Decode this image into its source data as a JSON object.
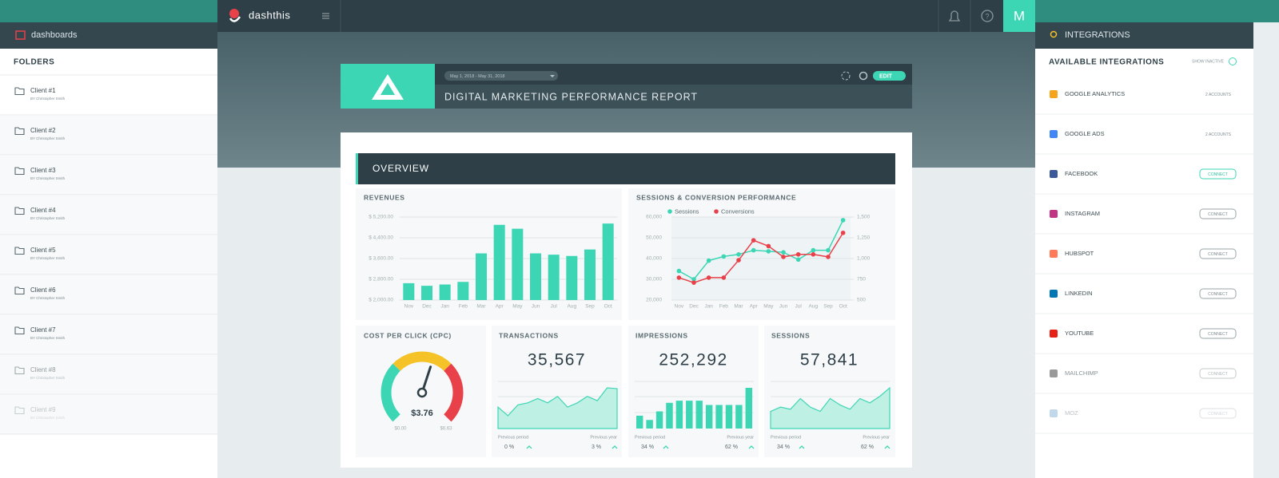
{
  "app": {
    "logo": "dashthis",
    "avatar": "M"
  },
  "left_panel": {
    "title": "dashboards",
    "folders_label": "FOLDERS",
    "clients": [
      {
        "name": "Client #1",
        "by": "BY Christopher Smith"
      },
      {
        "name": "Client #2",
        "by": "BY Christopher Smith"
      },
      {
        "name": "Client #3",
        "by": "BY Christopher Smith"
      },
      {
        "name": "Client #4",
        "by": "BY Christopher Smith"
      },
      {
        "name": "Client #5",
        "by": "BY Christopher Smith"
      },
      {
        "name": "Client #6",
        "by": "BY Christopher Smith"
      },
      {
        "name": "Client #7",
        "by": "BY Christopher Smith"
      },
      {
        "name": "Client #8",
        "by": "BY Christopher Smith"
      },
      {
        "name": "Client #9",
        "by": "BY Christopher Smith"
      }
    ]
  },
  "right_panel": {
    "title": "INTEGRATIONS",
    "subtitle": "AVAILABLE INTEGRATIONS",
    "show_inactive": "SHOW INACTIVE",
    "items": [
      {
        "name": "GOOGLE ANALYTICS",
        "status": "2 ACCOUNTS",
        "color": "#f4a51c"
      },
      {
        "name": "GOOGLE ADS",
        "status": "2 ACCOUNTS",
        "color": "#4285f4"
      },
      {
        "name": "FACEBOOK",
        "status": "CONNECT",
        "color": "#3b5998"
      },
      {
        "name": "INSTAGRAM",
        "status": "CONNECT",
        "color": "#c13584"
      },
      {
        "name": "HUBSPOT",
        "status": "CONNECT",
        "color": "#ff7a59"
      },
      {
        "name": "LINKEDIN",
        "status": "CONNECT",
        "color": "#0077b5"
      },
      {
        "name": "YOUTUBE",
        "status": "CONNECT",
        "color": "#e62117"
      },
      {
        "name": "MAILCHIMP",
        "status": "CONNECT",
        "color": "#555555"
      },
      {
        "name": "MOZ",
        "status": "CONNECT",
        "color": "#4a90c2"
      }
    ]
  },
  "report": {
    "date_range": "May 1, 2018 - May 31, 2018",
    "edit": "EDIT",
    "title": "DIGITAL MARKETING PERFORMANCE REPORT",
    "section": "OVERVIEW"
  },
  "revenues": {
    "type": "bar",
    "title": "REVENUES",
    "color": "#3dd6b5",
    "categories": [
      "Nov",
      "Dec",
      "Jan",
      "Feb",
      "Mar",
      "Apr",
      "May",
      "Jun",
      "Jul",
      "Aug",
      "Sep",
      "Oct"
    ],
    "values": [
      2650,
      2550,
      2600,
      2700,
      3800,
      4900,
      4750,
      3800,
      3750,
      3700,
      3950,
      4950
    ],
    "ylim": [
      2000,
      5200
    ],
    "yticks": [
      {
        "value": 2000,
        "label": "$ 2,000.00"
      },
      {
        "value": 2800,
        "label": "$ 2,800.00"
      },
      {
        "value": 3600,
        "label": "$ 3,600.00"
      },
      {
        "value": 4400,
        "label": "$ 4,400.00"
      },
      {
        "value": 5200,
        "label": "$ 5,200.00"
      }
    ],
    "grid": true
  },
  "sessions_chart": {
    "type": "line",
    "title": "SESSIONS & CONVERSION PERFORMANCE",
    "categories": [
      "Nov",
      "Dec",
      "Jan",
      "Feb",
      "Mar",
      "Apr",
      "May",
      "Jun",
      "Jul",
      "Aug",
      "Sep",
      "Oct"
    ],
    "series": [
      {
        "name": "Sessions",
        "color": "#3dd6b5",
        "values": [
          34000,
          30000,
          39000,
          41000,
          42000,
          44000,
          43500,
          43000,
          39500,
          44000,
          44000,
          58500
        ]
      },
      {
        "name": "Conversions",
        "color": "#e8414a",
        "axis": "y2",
        "values": [
          770,
          710,
          770,
          770,
          980,
          1220,
          1150,
          1020,
          1050,
          1050,
          1020,
          1310
        ]
      }
    ],
    "ylim": [
      20000,
      60000
    ],
    "yticks": [
      {
        "value": 20000,
        "label": "20,000"
      },
      {
        "value": 30000,
        "label": "30,000"
      },
      {
        "value": 40000,
        "label": "40,000"
      },
      {
        "value": 50000,
        "label": "50,000"
      },
      {
        "value": 60000,
        "label": "60,000"
      }
    ],
    "y2lim": [
      500,
      1500
    ],
    "y2ticks": [
      500,
      750,
      {
        "value": 1000,
        "label": "1,000"
      },
      {
        "value": 1250,
        "label": "1,250"
      },
      {
        "value": 1500,
        "label": "1,500"
      }
    ],
    "grid": true
  },
  "gauge": {
    "title": "COST PER CLICK (CPC)",
    "value": 3.76,
    "value_label": "$3.76",
    "min": 0,
    "max": 6.63,
    "min_label": "$0.00",
    "max_label": "$6.63",
    "colors": [
      "#3dd6b5",
      "#f5c228",
      "#e8414a"
    ]
  },
  "kpi_labels": {
    "previous_period": "Previous period",
    "previous_year": "Previous year"
  },
  "kpis": [
    {
      "title": "TRANSACTIONS",
      "value": 35567,
      "value_label": "35,567",
      "style": "area",
      "trend": [
        5,
        3,
        5.5,
        6,
        7,
        6,
        7.5,
        5,
        6,
        7.5,
        6.5,
        9.5,
        9.3
      ],
      "previous_period": 0,
      "previous_period_label": "0 %",
      "previous_year": 3,
      "previous_year_label": "3 %"
    },
    {
      "title": "IMPRESSIONS",
      "value": 252292,
      "value_label": "252,292",
      "style": "bars",
      "trend": [
        3,
        2,
        4,
        6,
        6.5,
        6.5,
        6.5,
        5.5,
        5.5,
        5.5,
        5.5,
        9.5
      ],
      "previous_period": 34,
      "previous_period_label": "34 %",
      "previous_year": 62,
      "previous_year_label": "62 %"
    },
    {
      "title": "SESSIONS",
      "value": 57841,
      "value_label": "57,841",
      "style": "area",
      "trend": [
        4,
        5,
        4.5,
        7,
        5,
        4,
        7,
        5.5,
        4.5,
        7,
        6,
        7.5,
        9.5
      ],
      "previous_period": 34,
      "previous_period_label": "34 %",
      "previous_year": 62,
      "previous_year_label": "62 %"
    }
  ]
}
